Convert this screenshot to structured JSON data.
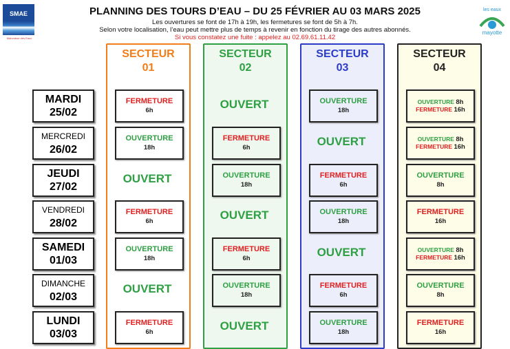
{
  "header": {
    "title": "PLANNING DES TOURS D’EAU – DU 25 FÉVRIER AU 03 MARS 2025",
    "line1": "Les ouvertures se font de 17h à 19h, les fermetures se font de 5h à 7h.",
    "line2": "Selon votre localisation, l’eau peut mettre plus de temps à revenir en fonction du tirage des autres abonnés.",
    "line3": "Si vous constatez une fuite : appelez au 02.69.61.11.42",
    "logo_left": "SMAE",
    "logo_left_caption": "Mahoraise des Eaux",
    "logo_right": "Les eaux de mayotte"
  },
  "colors": {
    "s1": "#f07d1a",
    "s2": "#2ea043",
    "s3": "#2b3cc8",
    "s4": "#222222",
    "open": "#2ea043",
    "close": "#e02020"
  },
  "days": [
    {
      "name": "MARDI",
      "date": "25/02"
    },
    {
      "name": "MERCREDI",
      "date": "26/02"
    },
    {
      "name": "JEUDI",
      "date": "27/02"
    },
    {
      "name": "VENDREDI",
      "date": "28/02"
    },
    {
      "name": "SAMEDI",
      "date": "01/03"
    },
    {
      "name": "DIMANCHE",
      "date": "02/03"
    },
    {
      "name": "LUNDI",
      "date": "03/03"
    }
  ],
  "labels": {
    "open": "OUVERT",
    "ouverture": "OUVERTURE",
    "fermeture": "FERMETURE"
  },
  "sectors": [
    {
      "l1": "SECTEUR",
      "l2": "01",
      "cells": [
        {
          "t": "F",
          "h": "6h"
        },
        {
          "t": "O",
          "h": "18h"
        },
        {
          "t": "OPEN"
        },
        {
          "t": "F",
          "h": "6h"
        },
        {
          "t": "O",
          "h": "18h"
        },
        {
          "t": "OPEN"
        },
        {
          "t": "F",
          "h": "6h"
        }
      ]
    },
    {
      "l1": "SECTEUR",
      "l2": "02",
      "cells": [
        {
          "t": "OPEN"
        },
        {
          "t": "F",
          "h": "6h"
        },
        {
          "t": "O",
          "h": "18h"
        },
        {
          "t": "OPEN"
        },
        {
          "t": "F",
          "h": "6h"
        },
        {
          "t": "O",
          "h": "18h"
        },
        {
          "t": "OPEN"
        }
      ]
    },
    {
      "l1": "SECTEUR",
      "l2": "03",
      "cells": [
        {
          "t": "O",
          "h": "18h"
        },
        {
          "t": "OPEN"
        },
        {
          "t": "F",
          "h": "6h"
        },
        {
          "t": "O",
          "h": "18h"
        },
        {
          "t": "OPEN"
        },
        {
          "t": "F",
          "h": "6h"
        },
        {
          "t": "O",
          "h": "18h"
        }
      ]
    },
    {
      "l1": "SECTEUR",
      "l2": "04",
      "cells": [
        {
          "t": "MIX",
          "h": "8h",
          "h2": "16h"
        },
        {
          "t": "MIX",
          "h": "8h",
          "h2": "16h"
        },
        {
          "t": "O",
          "h": "8h"
        },
        {
          "t": "F",
          "h": "16h"
        },
        {
          "t": "MIX",
          "h": "8h",
          "h2": "16h"
        },
        {
          "t": "O",
          "h": "8h"
        },
        {
          "t": "F",
          "h": "16h"
        }
      ]
    }
  ]
}
